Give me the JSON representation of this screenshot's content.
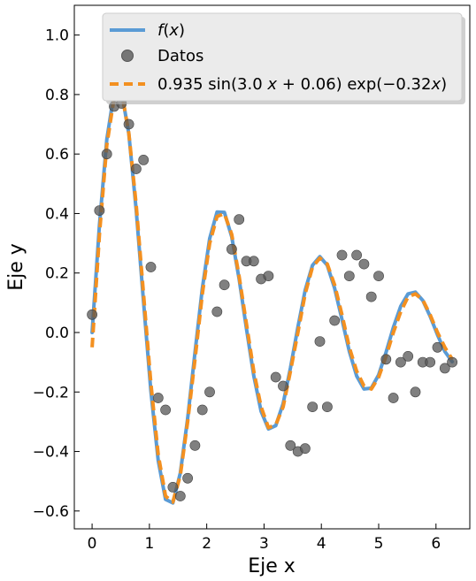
{
  "chart_data": {
    "type": "line",
    "xlabel": "Eje x",
    "ylabel": "Eje y",
    "xlim": [
      -0.31,
      6.59
    ],
    "ylim": [
      -0.66,
      1.1
    ],
    "xticks": [
      0,
      1,
      2,
      3,
      4,
      5,
      6
    ],
    "xtick_labels": [
      "0",
      "1",
      "2",
      "3",
      "4",
      "5",
      "6"
    ],
    "yticks": [
      -0.6,
      -0.4,
      -0.2,
      0.0,
      0.2,
      0.4,
      0.6,
      0.8,
      1.0
    ],
    "ytick_labels": [
      "−0.6",
      "−0.4",
      "−0.2",
      "0.0",
      "0.2",
      "0.4",
      "0.6",
      "0.8",
      "1.0"
    ],
    "legend_position": "top-right",
    "series": [
      {
        "name": "f(x)",
        "kind": "line",
        "color": "#5a9bd5",
        "x": [
          0,
          0.128,
          0.256,
          0.385,
          0.513,
          0.641,
          0.769,
          0.897,
          1.026,
          1.154,
          1.282,
          1.41,
          1.539,
          1.667,
          1.795,
          1.923,
          2.051,
          2.18,
          2.308,
          2.436,
          2.564,
          2.692,
          2.82,
          2.949,
          3.077,
          3.205,
          3.333,
          3.461,
          3.59,
          3.718,
          3.846,
          3.974,
          4.103,
          4.231,
          4.359,
          4.487,
          4.615,
          4.744,
          4.872,
          5.0,
          5.128,
          5.256,
          5.385,
          5.513,
          5.641,
          5.769,
          5.897,
          6.026,
          6.154,
          6.283
        ],
        "y": [
          0.0,
          0.362,
          0.649,
          0.807,
          0.811,
          0.668,
          0.413,
          0.104,
          -0.196,
          -0.43,
          -0.561,
          -0.573,
          -0.472,
          -0.289,
          -0.067,
          0.149,
          0.316,
          0.405,
          0.404,
          0.322,
          0.181,
          0.014,
          -0.145,
          -0.265,
          -0.324,
          -0.313,
          -0.239,
          -0.119,
          0.018,
          0.142,
          0.226,
          0.255,
          0.226,
          0.149,
          0.044,
          -0.063,
          -0.146,
          -0.19,
          -0.187,
          -0.142,
          -0.067,
          0.017,
          0.088,
          0.13,
          0.136,
          0.108,
          0.055,
          -0.008,
          -0.064,
          -0.098
        ]
      },
      {
        "name": "Datos",
        "kind": "scatter",
        "color": "#555555",
        "x": [
          0,
          0.128,
          0.256,
          0.385,
          0.513,
          0.641,
          0.769,
          0.897,
          1.026,
          1.154,
          1.282,
          1.41,
          1.539,
          1.667,
          1.795,
          1.923,
          2.051,
          2.18,
          2.308,
          2.436,
          2.564,
          2.692,
          2.82,
          2.949,
          3.077,
          3.205,
          3.333,
          3.461,
          3.59,
          3.718,
          3.846,
          3.974,
          4.103,
          4.231,
          4.359,
          4.487,
          4.615,
          4.744,
          4.872,
          5.0,
          5.128,
          5.256,
          5.385,
          5.513,
          5.641,
          5.769,
          5.897,
          6.026,
          6.154,
          6.283
        ],
        "y": [
          0.06,
          0.41,
          0.6,
          0.76,
          0.77,
          0.7,
          0.55,
          0.58,
          0.22,
          -0.22,
          -0.26,
          -0.52,
          -0.55,
          -0.49,
          -0.38,
          -0.26,
          -0.2,
          0.07,
          0.16,
          0.28,
          0.38,
          0.24,
          0.24,
          0.18,
          0.19,
          -0.15,
          -0.18,
          -0.38,
          -0.4,
          -0.39,
          -0.25,
          -0.03,
          -0.25,
          0.04,
          0.26,
          0.19,
          0.26,
          0.23,
          0.12,
          0.19,
          -0.09,
          -0.22,
          -0.1,
          -0.08,
          -0.2,
          -0.1,
          -0.1,
          -0.05,
          -0.12,
          -0.1
        ]
      },
      {
        "name": "0.935 sin(3.0 x + 0.06) exp(−0.32x)",
        "kind": "dashed-line",
        "color": "#f39020",
        "x": [
          0,
          0.128,
          0.256,
          0.385,
          0.513,
          0.641,
          0.769,
          0.897,
          1.026,
          1.154,
          1.282,
          1.41,
          1.539,
          1.667,
          1.795,
          1.923,
          2.051,
          2.18,
          2.308,
          2.436,
          2.564,
          2.692,
          2.82,
          2.949,
          3.077,
          3.205,
          3.333,
          3.461,
          3.59,
          3.718,
          3.846,
          3.974,
          4.103,
          4.231,
          4.359,
          4.487,
          4.615,
          4.744,
          4.872,
          5.0,
          5.128,
          5.256,
          5.385,
          5.513,
          5.641,
          5.769,
          5.897,
          6.026,
          6.154,
          6.283
        ],
        "y": [
          -0.05,
          0.33,
          0.63,
          0.79,
          0.81,
          0.67,
          0.43,
          0.13,
          -0.17,
          -0.41,
          -0.55,
          -0.57,
          -0.48,
          -0.3,
          -0.09,
          0.13,
          0.3,
          0.39,
          0.4,
          0.33,
          0.19,
          0.03,
          -0.13,
          -0.25,
          -0.32,
          -0.31,
          -0.25,
          -0.13,
          0.0,
          0.13,
          0.22,
          0.25,
          0.23,
          0.16,
          0.06,
          -0.05,
          -0.13,
          -0.18,
          -0.19,
          -0.15,
          -0.08,
          0.0,
          0.07,
          0.12,
          0.13,
          0.11,
          0.06,
          0.0,
          -0.05,
          -0.09
        ]
      }
    ]
  }
}
